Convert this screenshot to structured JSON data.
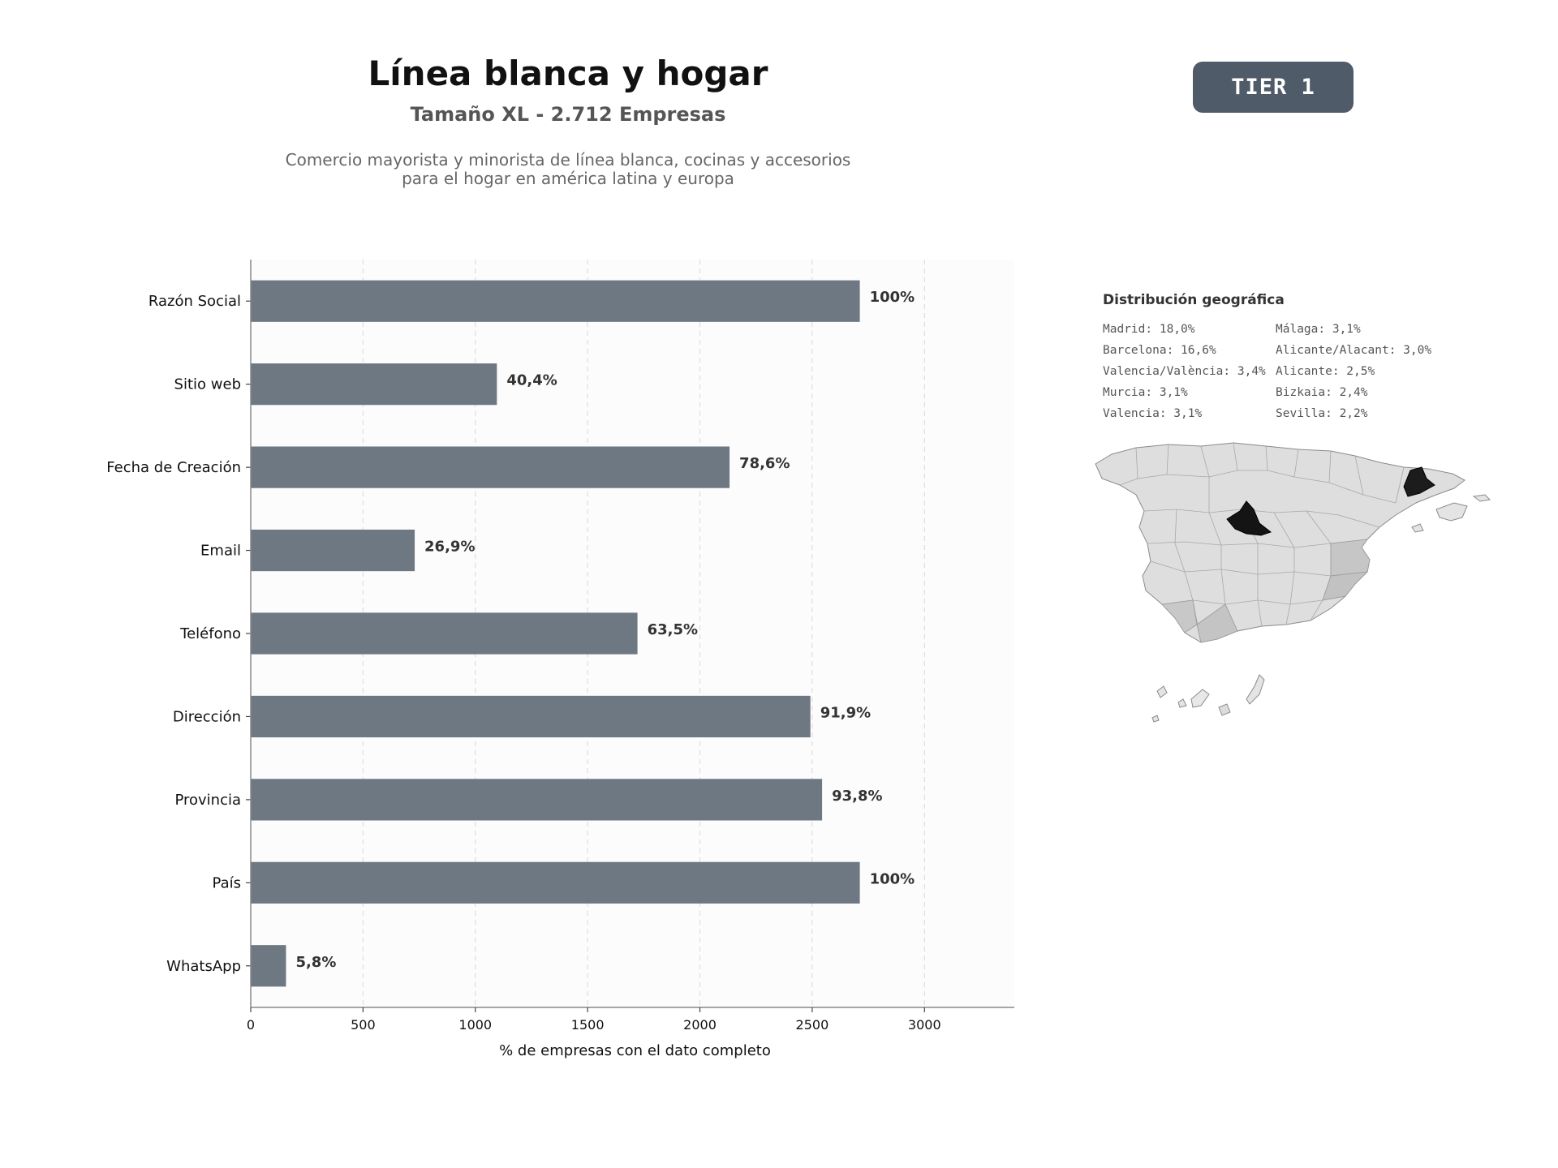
{
  "header": {
    "title": "Línea blanca y hogar",
    "subtitle": "Tamaño XL - 2.712 Empresas",
    "description_line1": "Comercio mayorista y minorista de línea blanca, cocinas y accesorios",
    "description_line2": "para el hogar en américa latina y europa",
    "tier_badge": "TIER 1"
  },
  "chart_data": {
    "type": "bar",
    "orientation": "horizontal",
    "categories": [
      "Razón Social",
      "Sitio web",
      "Fecha de Creación",
      "Email",
      "Teléfono",
      "Dirección",
      "Provincia",
      "País",
      "WhatsApp"
    ],
    "values": [
      2712,
      1096,
      2132,
      730,
      1722,
      2492,
      2544,
      2712,
      157
    ],
    "data_labels": [
      "100%",
      "40,4%",
      "78,6%",
      "26,9%",
      "63,5%",
      "91,9%",
      "93,8%",
      "100%",
      "5,8%"
    ],
    "xlabel": "% de empresas con el dato completo",
    "ylabel": "",
    "xlim": [
      0,
      3400
    ],
    "xticks": [
      0,
      500,
      1000,
      1500,
      2000,
      2500,
      3000
    ],
    "grid": "vertical dashed",
    "bar_color": "#6e7882"
  },
  "geo": {
    "title": "Distribución geográfica",
    "items": [
      "Madrid: 18,0%",
      "Barcelona: 16,6%",
      "Valencia/València: 3,4%",
      "Murcia: 3,1%",
      "Valencia: 3,1%",
      "Málaga: 3,1%",
      "Alicante/Alacant: 3,0%",
      "Alicante: 2,5%",
      "Bizkaia: 2,4%",
      "Sevilla: 2,2%"
    ]
  }
}
